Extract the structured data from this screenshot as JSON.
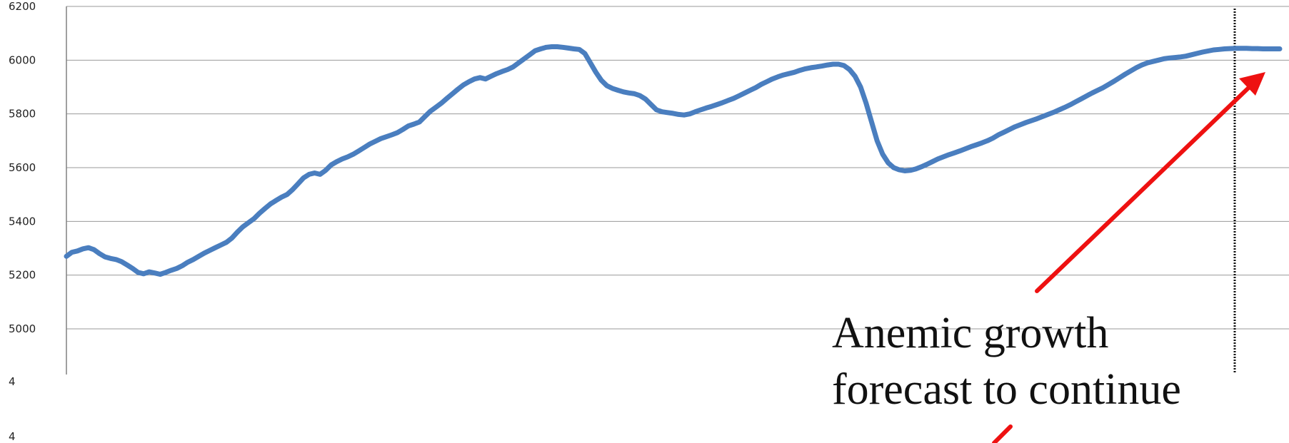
{
  "chart_data": {
    "type": "line",
    "title": "",
    "xlabel": "",
    "ylabel": "",
    "ylim": [
      4800,
      6200
    ],
    "y_ticks": [
      5000,
      5200,
      5400,
      5600,
      5800,
      6000,
      6200
    ],
    "extra_tick_labels": [
      "4",
      "4"
    ],
    "grid": true,
    "line_color": "#4a7ebf",
    "arrow_color": "#ee1111",
    "forecast_marker": "dotted vertical line",
    "series": [
      {
        "values": [
          5270,
          5285,
          5290,
          5298,
          5302,
          5295,
          5280,
          5268,
          5262,
          5258,
          5250,
          5238,
          5225,
          5210,
          5205,
          5212,
          5208,
          5203,
          5210,
          5218,
          5225,
          5235,
          5248,
          5258,
          5270,
          5282,
          5292,
          5302,
          5312,
          5322,
          5338,
          5360,
          5380,
          5395,
          5410,
          5430,
          5448,
          5465,
          5478,
          5490,
          5500,
          5518,
          5540,
          5562,
          5575,
          5580,
          5575,
          5590,
          5610,
          5622,
          5632,
          5640,
          5650,
          5662,
          5675,
          5688,
          5698,
          5708,
          5715,
          5722,
          5730,
          5742,
          5755,
          5762,
          5770,
          5790,
          5810,
          5825,
          5840,
          5858,
          5875,
          5892,
          5908,
          5920,
          5930,
          5935,
          5930,
          5940,
          5950,
          5958,
          5965,
          5975,
          5990,
          6005,
          6020,
          6035,
          6042,
          6048,
          6050,
          6050,
          6048,
          6045,
          6042,
          6040,
          6025,
          5990,
          5955,
          5925,
          5905,
          5895,
          5888,
          5882,
          5878,
          5875,
          5868,
          5855,
          5835,
          5815,
          5808,
          5805,
          5802,
          5798,
          5796,
          5800,
          5808,
          5815,
          5822,
          5828,
          5835,
          5842,
          5850,
          5858,
          5868,
          5878,
          5888,
          5898,
          5910,
          5920,
          5930,
          5938,
          5945,
          5950,
          5955,
          5962,
          5968,
          5972,
          5975,
          5978,
          5982,
          5985,
          5985,
          5980,
          5965,
          5940,
          5900,
          5840,
          5770,
          5700,
          5650,
          5618,
          5600,
          5592,
          5588,
          5590,
          5595,
          5603,
          5612,
          5622,
          5632,
          5640,
          5648,
          5655,
          5662,
          5670,
          5678,
          5685,
          5692,
          5700,
          5710,
          5722,
          5732,
          5742,
          5752,
          5760,
          5768,
          5775,
          5782,
          5790,
          5798,
          5806,
          5815,
          5824,
          5834,
          5845,
          5856,
          5867,
          5878,
          5888,
          5898,
          5910,
          5922,
          5935,
          5948,
          5960,
          5972,
          5982,
          5990,
          5995,
          6000,
          6005,
          6008,
          6010,
          6012,
          6015,
          6020,
          6025,
          6030,
          6034,
          6038,
          6040,
          6042,
          6043,
          6044,
          6044,
          6044,
          6043,
          6043,
          6042,
          6042,
          6042,
          6042
        ]
      }
    ],
    "annotation": {
      "line1": "Anemic growth",
      "line2": "forecast to continue"
    }
  }
}
